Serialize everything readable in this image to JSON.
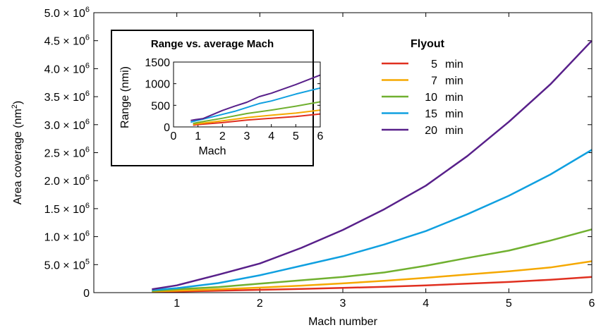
{
  "chart_data": {
    "main": {
      "type": "line",
      "xlabel": "Mach number",
      "ylabel": "Area coverage (nm²)",
      "ylabel_text": "Area coverage (nm",
      "ylabel_sup": "2",
      "ylabel_close": ")",
      "xlim": [
        0.0,
        6.0
      ],
      "ylim": [
        0,
        5000000
      ],
      "x_ticks": [
        {
          "value": 1,
          "label": "1"
        },
        {
          "value": 2,
          "label": "2"
        },
        {
          "value": 3,
          "label": "3"
        },
        {
          "value": 4,
          "label": "4"
        },
        {
          "value": 5,
          "label": "5"
        },
        {
          "value": 6,
          "label": "6"
        }
      ],
      "y_ticks": [
        {
          "value": 0,
          "mant": "0",
          "exp": ""
        },
        {
          "value": 500000,
          "mant": "5.0",
          "exp": "5"
        },
        {
          "value": 1000000,
          "mant": "1.0",
          "exp": "6"
        },
        {
          "value": 1500000,
          "mant": "1.5",
          "exp": "6"
        },
        {
          "value": 2000000,
          "mant": "2.0",
          "exp": "6"
        },
        {
          "value": 2500000,
          "mant": "2.5",
          "exp": "6"
        },
        {
          "value": 3000000,
          "mant": "3.0",
          "exp": "6"
        },
        {
          "value": 3500000,
          "mant": "3.5",
          "exp": "6"
        },
        {
          "value": 4000000,
          "mant": "4.0",
          "exp": "6"
        },
        {
          "value": 4500000,
          "mant": "4.5",
          "exp": "6"
        },
        {
          "value": 5000000,
          "mant": "5.0",
          "exp": "6"
        }
      ],
      "times_sign": "×",
      "tick_base": "10",
      "grid": false,
      "legend": {
        "title": "Flyout",
        "position": "top-right",
        "entries": [
          {
            "number": "5",
            "unit": "min"
          },
          {
            "number": "7",
            "unit": "min"
          },
          {
            "number": "10",
            "unit": "min"
          },
          {
            "number": "15",
            "unit": "min"
          },
          {
            "number": "20",
            "unit": "min"
          }
        ]
      },
      "series": [
        {
          "name": "5 min",
          "color": "#e03020",
          "x": [
            0.7,
            1.0,
            1.5,
            2.0,
            2.5,
            3.0,
            3.5,
            4.0,
            4.5,
            5.0,
            5.5,
            6.0
          ],
          "y": [
            15000,
            20000,
            35000,
            50000,
            65000,
            85000,
            105000,
            130000,
            160000,
            190000,
            230000,
            280000
          ]
        },
        {
          "name": "7 min",
          "color": "#f5a800",
          "x": [
            0.7,
            1.0,
            1.5,
            2.0,
            2.5,
            3.0,
            3.5,
            4.0,
            4.5,
            5.0,
            5.5,
            6.0
          ],
          "y": [
            20000,
            35000,
            60000,
            90000,
            125000,
            165000,
            210000,
            265000,
            325000,
            380000,
            450000,
            560000
          ]
        },
        {
          "name": "10 min",
          "color": "#70b030",
          "x": [
            0.7,
            1.0,
            1.5,
            2.0,
            2.5,
            3.0,
            3.5,
            4.0,
            4.5,
            5.0,
            5.5,
            6.0
          ],
          "y": [
            30000,
            60000,
            100000,
            160000,
            220000,
            280000,
            360000,
            480000,
            620000,
            750000,
            930000,
            1130000
          ]
        },
        {
          "name": "15 min",
          "color": "#10a0e0",
          "x": [
            0.7,
            1.0,
            1.5,
            2.0,
            2.5,
            3.0,
            3.5,
            4.0,
            4.5,
            5.0,
            5.5,
            6.0
          ],
          "y": [
            45000,
            80000,
            170000,
            310000,
            480000,
            650000,
            860000,
            1100000,
            1400000,
            1730000,
            2110000,
            2550000
          ]
        },
        {
          "name": "20 min",
          "color": "#58208a",
          "x": [
            0.7,
            1.0,
            1.5,
            2.0,
            2.5,
            3.0,
            3.5,
            4.0,
            4.5,
            5.0,
            5.5,
            6.0
          ],
          "y": [
            60000,
            130000,
            320000,
            520000,
            800000,
            1120000,
            1490000,
            1910000,
            2440000,
            3050000,
            3720000,
            4500000
          ]
        }
      ]
    },
    "inset": {
      "type": "line",
      "title": "Range vs. average Mach",
      "xlabel": "Mach",
      "ylabel": "Range (nmi)",
      "xlim": [
        0,
        6
      ],
      "ylim": [
        0,
        1500
      ],
      "x_ticks": [
        0,
        1,
        2,
        3,
        4,
        5,
        6
      ],
      "y_ticks": [
        0,
        500,
        1000,
        1500
      ],
      "series": [
        {
          "name": "5 min",
          "color": "#e03020",
          "x": [
            0.8,
            1.0,
            2.0,
            3.0,
            4.0,
            5.0,
            6.0
          ],
          "y": [
            40,
            55,
            100,
            160,
            200,
            240,
            300
          ]
        },
        {
          "name": "7 min",
          "color": "#f5a800",
          "x": [
            0.8,
            1.0,
            2.0,
            3.0,
            4.0,
            5.0,
            6.0
          ],
          "y": [
            60,
            75,
            140,
            215,
            270,
            320,
            390
          ]
        },
        {
          "name": "10 min",
          "color": "#70b030",
          "x": [
            0.8,
            1.0,
            2.0,
            3.0,
            4.0,
            5.0,
            6.0
          ],
          "y": [
            80,
            105,
            200,
            310,
            390,
            480,
            580
          ]
        },
        {
          "name": "15 min",
          "color": "#10a0e0",
          "x": [
            0.7,
            0.9,
            1.2,
            2.0,
            2.5,
            3.0,
            3.5,
            4.0,
            5.0,
            6.0
          ],
          "y": [
            110,
            140,
            180,
            290,
            360,
            450,
            540,
            600,
            760,
            900
          ]
        },
        {
          "name": "20 min",
          "color": "#58208a",
          "x": [
            0.7,
            0.9,
            1.2,
            2.0,
            2.5,
            3.0,
            3.5,
            4.0,
            5.0,
            6.0
          ],
          "y": [
            150,
            170,
            190,
            380,
            480,
            570,
            700,
            780,
            980,
            1200
          ]
        }
      ]
    }
  }
}
